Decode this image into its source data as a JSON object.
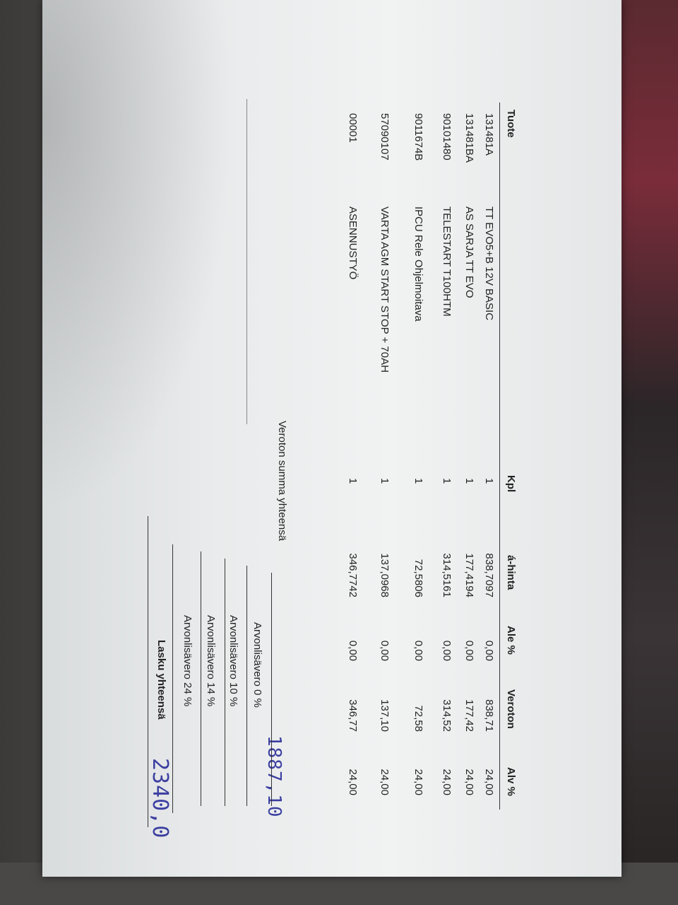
{
  "invoice": {
    "columns": {
      "product": "Tuote",
      "qty": "Kpl",
      "unit_price": "á-hinta",
      "discount": "Ale %",
      "net": "Veroton",
      "vat": "Alv %"
    },
    "rows": [
      {
        "code": "131481A",
        "description": "TT EVO5+B 12V BASIC",
        "qty": "1",
        "unit_price": "838,7097",
        "discount": "0,00",
        "net": "838,71",
        "vat": "24,00"
      },
      {
        "code": "131481BA",
        "description": "AS SARJA TT EVO",
        "qty": "1",
        "unit_price": "177,4194",
        "discount": "0,00",
        "net": "177,42",
        "vat": "24,00"
      },
      {
        "code": "90101480",
        "description": "TELESTART T100HTM",
        "qty": "1",
        "unit_price": "314,5161",
        "discount": "0,00",
        "net": "314,52",
        "vat": "24,00"
      },
      {
        "code": "9011674B",
        "description": "IPCU Rele Ohjelmoitava",
        "qty": "1",
        "unit_price": "72,5806",
        "discount": "0,00",
        "net": "72,58",
        "vat": "24,00"
      },
      {
        "code": "57090107",
        "description": "VARTA AGM START STOP + 70AH",
        "qty": "1",
        "unit_price": "137,0968",
        "discount": "0,00",
        "net": "137,10",
        "vat": "24,00"
      },
      {
        "code": "00001",
        "description": "ASENNUSTYÖ",
        "qty": "1",
        "unit_price": "346,7742",
        "discount": "0,00",
        "net": "346,77",
        "vat": "24,00"
      }
    ],
    "summary": {
      "net_total_label": "Veroton summa yhteensä",
      "net_total_handwritten": "1887,10",
      "vat0_label": "Arvonlisävero 0 %",
      "vat10_label": "Arvonlisävero 10 %",
      "vat14_label": "Arvonlisävero 14 %",
      "vat24_label": "Arvonlisävero 24 %",
      "invoice_total_label": "Lasku yhteensä",
      "invoice_total_handwritten": "2340,0"
    },
    "handwriting_color": "#3b3fa0"
  }
}
